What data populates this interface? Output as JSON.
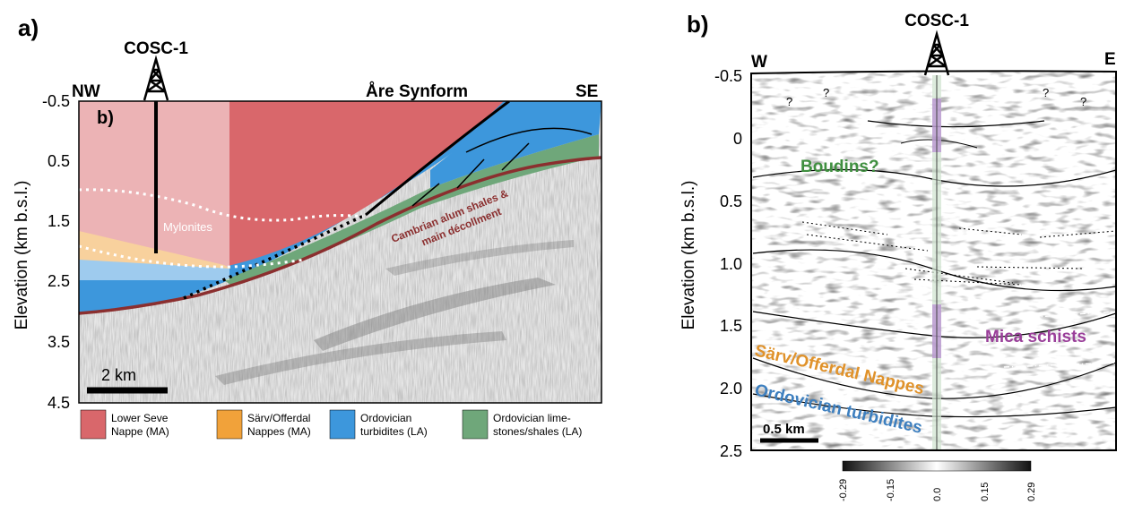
{
  "panel_a": {
    "label": "a)",
    "well_name": "COSC-1",
    "left_dir": "NW",
    "right_dir": "SE",
    "synform": "Åre Synform",
    "inset_label": "b)",
    "y_axis_label": "Elevation (km b.s.l.)",
    "y_ticks": [
      "-0.5",
      "0.5",
      "1.5",
      "2.5",
      "3.5",
      "4.5"
    ],
    "mylonites": "Mylonites",
    "decollement_line1": "Cambrian alum shales &",
    "decollement_line2": "main décollment",
    "scale_bar": "2 km",
    "legend": [
      {
        "line1": "Lower Seve",
        "line2": "Nappe (MA)",
        "color": "#d9676b"
      },
      {
        "line1": "Särv/Offerdal",
        "line2": "Nappes (MA)",
        "color": "#f1a23a"
      },
      {
        "line1": "Ordovician",
        "line2": "turbidites (LA)",
        "color": "#3d97dc"
      },
      {
        "line1": "Ordovician lime-",
        "line2": "stones/shales (LA)",
        "color": "#6fa77a"
      }
    ]
  },
  "panel_b": {
    "label": "b)",
    "well_name": "COSC-1",
    "left_dir": "W",
    "right_dir": "E",
    "y_axis_label": "Elevation (km b.s.l.)",
    "y_ticks": [
      "-0.5",
      "0",
      "0.5",
      "1.0",
      "1.5",
      "2.0",
      "2.5"
    ],
    "question_marks": [
      "?",
      "?",
      "?",
      "?"
    ],
    "boudins": "Boudins?",
    "mica": "Mica schists",
    "sarv": "Särv/Offerdal Nappes",
    "ordovician": "Ordovician turbidites",
    "scale_bar": "0.5 km",
    "colorbar_ticks": [
      "-0.29",
      "-0.15",
      "0.0",
      "0.15",
      "0.29"
    ]
  },
  "colors": {
    "seve": "#d9676b",
    "sarv": "#f1a23a",
    "turbidites": "#3d97dc",
    "limestones": "#6fa77a",
    "decollement": "#8b2f2f",
    "boudins_text": "#3f8f3f",
    "mica_text": "#9a3f9a",
    "sarv_text": "#e0922a",
    "ordovician_text": "#3d7fbf"
  }
}
